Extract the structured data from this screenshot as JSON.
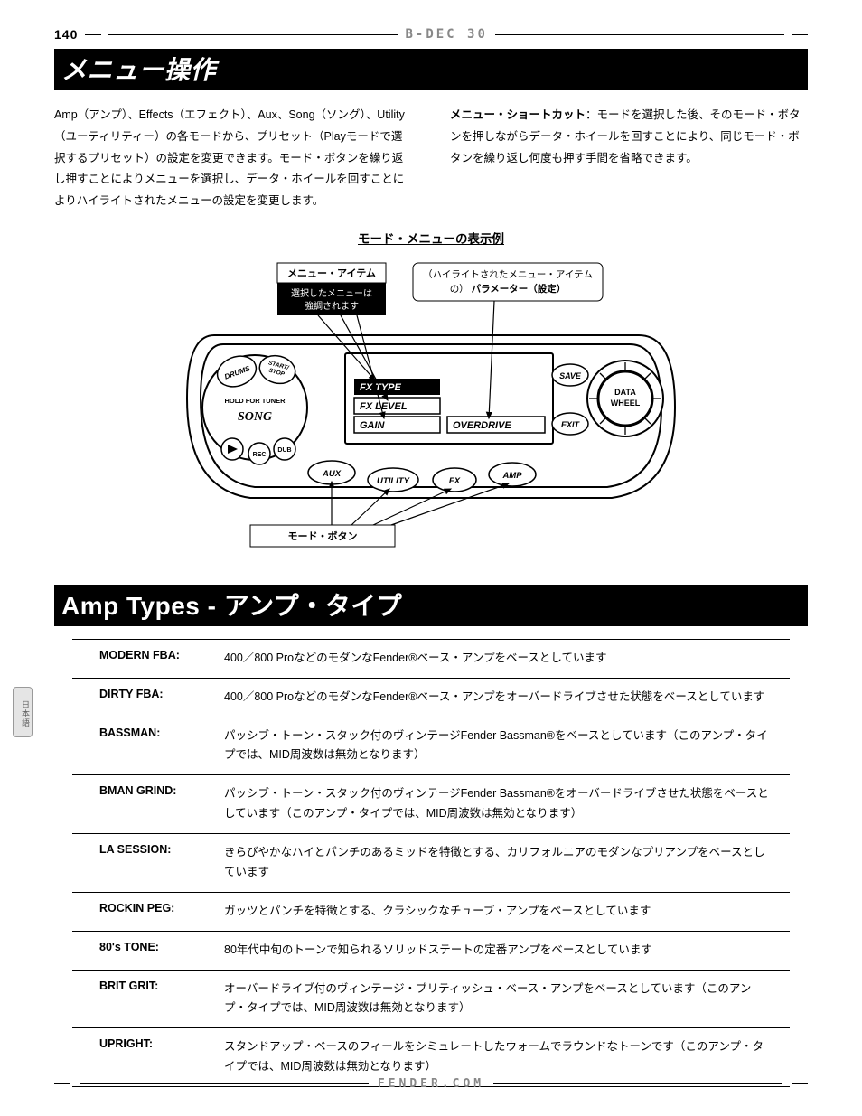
{
  "page_number": "140",
  "product_name": "B-DEC 30",
  "title1": "メニュー操作",
  "para_left": "Amp（アンプ）、Effects（エフェクト）、Aux、Song（ソング）、Utility（ユーティリティー）の各モードから、プリセット（Playモードで選択するプリセット）の設定を変更できます。モード・ボタンを繰り返し押すことによりメニューを選択し、データ・ホイールを回すことによりハイライトされたメニューの設定を変更します。",
  "para_right_bold": "メニュー・ショートカット",
  "para_right": "：モードを選択した後、そのモード・ボタンを押しながらデータ・ホイールを回すことにより、同じモード・ボタンを繰り返し何度も押す手間を省略できます。",
  "diagram_title": "モード・メニューの表示例",
  "callout_menu_item_title": "メニュー・アイテム",
  "callout_menu_item_sub": "選択したメニューは強調されます",
  "callout_param_top": "（ハイライトされたメニュー・アイテム",
  "callout_param_bold": "パラメーター（設定）",
  "callout_param_prefix": "の）",
  "callout_mode_btn": "モード・ボタン",
  "lcd_lines": {
    "fx_type": "FX TYPE",
    "fx_level": "FX LEVEL",
    "gain": "GAIN",
    "overdrive": "OVERDRIVE"
  },
  "panel_labels": {
    "drums": "DRUMS",
    "start_stop": "START/\nSTOP",
    "hold_tuner": "HOLD FOR TUNER",
    "song": "SONG",
    "rec": "REC",
    "dub": "DUB",
    "save": "SAVE",
    "exit": "EXIT",
    "data_wheel": "DATA\nWHEEL",
    "aux": "AUX",
    "utility": "UTILITY",
    "fx": "FX",
    "amp": "AMP"
  },
  "title2": "Amp Types - アンプ・タイプ",
  "amp_rows": [
    {
      "name": "MODERN FBA:",
      "desc": "400／800 ProなどのモダンなFender®ベース・アンプをベースとしています"
    },
    {
      "name": "DIRTY FBA:",
      "desc": "400／800 ProなどのモダンなFender®ベース・アンプをオーバードライブさせた状態をベースとしています"
    },
    {
      "name": "BASSMAN:",
      "desc": "パッシブ・トーン・スタック付のヴィンテージFender Bassman®をベースとしています（このアンプ・タイプでは、MID周波数は無効となります）"
    },
    {
      "name": "BMAN GRIND:",
      "desc": "パッシブ・トーン・スタック付のヴィンテージFender Bassman®をオーバードライブさせた状態をベースとしています（このアンプ・タイプでは、MID周波数は無効となります）"
    },
    {
      "name": "LA SESSION:",
      "desc": "きらびやかなハイとパンチのあるミッドを特徴とする、カリフォルニアのモダンなプリアンプをベースとしています"
    },
    {
      "name": "ROCKIN PEG:",
      "desc": "ガッツとパンチを特徴とする、クラシックなチューブ・アンプをベースとしています"
    },
    {
      "name": "80's TONE:",
      "desc": "80年代中旬のトーンで知られるソリッドステートの定番アンプをベースとしています"
    },
    {
      "name": "BRIT GRIT:",
      "desc": "オーバードライブ付のヴィンテージ・ブリティッシュ・ベース・アンプをベースとしています（このアンプ・タイプでは、MID周波数は無効となります）"
    },
    {
      "name": "UPRIGHT:",
      "desc": "スタンドアップ・ベースのフィールをシミュレートしたウォームでラウンドなトーンです（このアンプ・タイプでは、MID周波数は無効となります）"
    }
  ],
  "side_tab": "日本語",
  "footer_brand": "FENDER.COM",
  "colors": {
    "bg": "#ffffff",
    "fg": "#000000",
    "grey": "#888888"
  }
}
